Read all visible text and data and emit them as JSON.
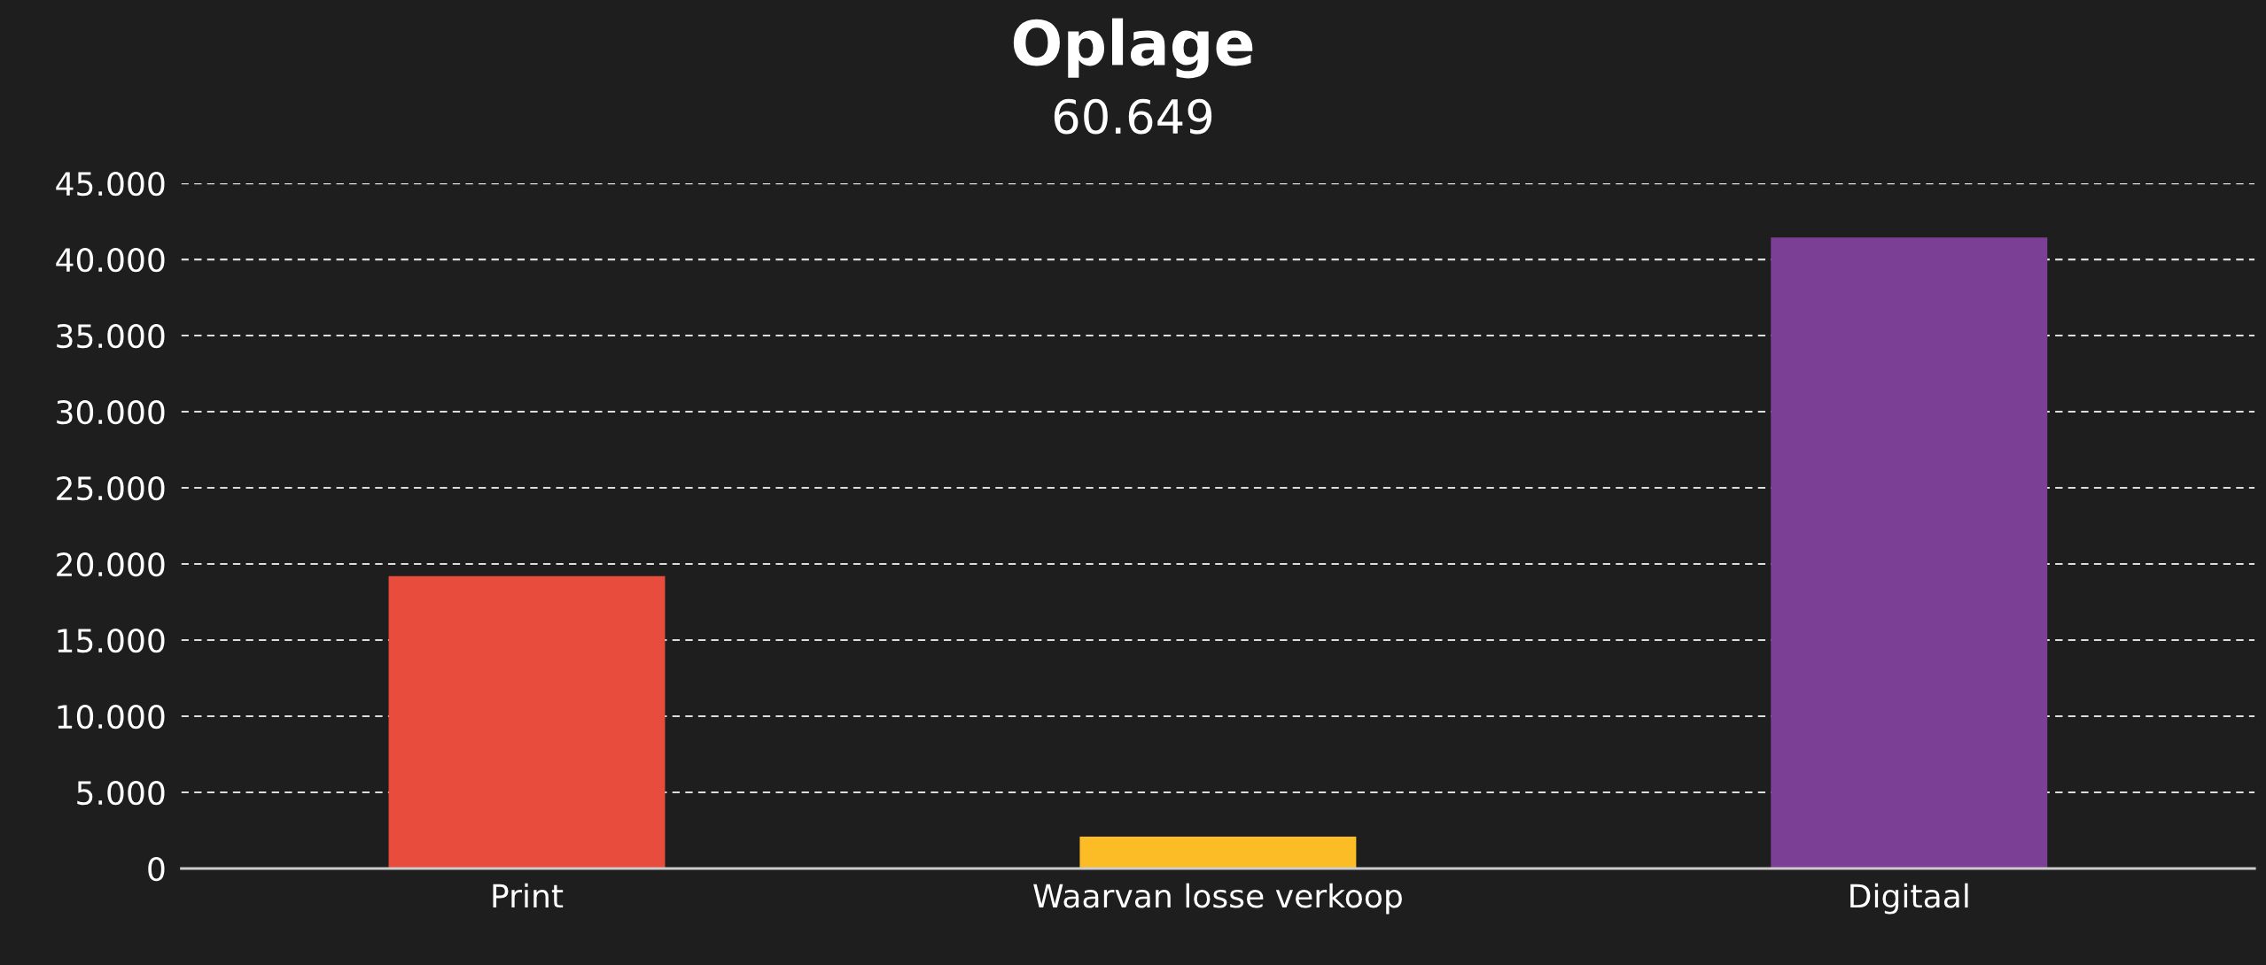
{
  "chart_data": {
    "type": "bar",
    "title": "Oplage",
    "subtitle": "60.649",
    "categories": [
      "Print",
      "Waarvan losse verkoop",
      "Digitaal"
    ],
    "values": [
      19200,
      2100,
      41450
    ],
    "colors": [
      "#e74c3c",
      "#fbbc26",
      "#7b3f95"
    ],
    "ylim": [
      0,
      45000
    ],
    "yticks": [
      {
        "value": 0,
        "label": "0"
      },
      {
        "value": 5000,
        "label": "5.000"
      },
      {
        "value": 10000,
        "label": "10.000"
      },
      {
        "value": 15000,
        "label": "15.000"
      },
      {
        "value": 20000,
        "label": "20.000"
      },
      {
        "value": 25000,
        "label": "25.000"
      },
      {
        "value": 30000,
        "label": "30.000"
      },
      {
        "value": 35000,
        "label": "35.000"
      },
      {
        "value": 40000,
        "label": "40.000"
      },
      {
        "value": 45000,
        "label": "45.000"
      }
    ],
    "grid": "y",
    "legend": false
  }
}
